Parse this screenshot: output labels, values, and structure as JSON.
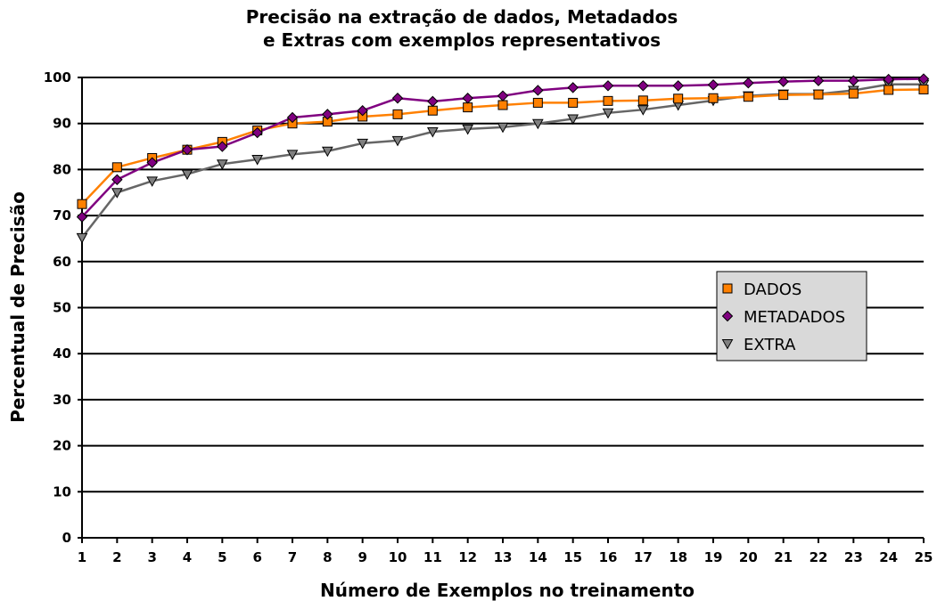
{
  "colors": {
    "gridline": "#000000",
    "background": "#ffffff",
    "legend_bg": "#d9d9d9"
  },
  "chart_data": {
    "type": "line",
    "title_lines": [
      "Precisão na extração de dados, Metadados",
      "e Extras com exemplos representativos"
    ],
    "xlabel": "Número de Exemplos no treinamento",
    "ylabel": "Percentual de Precisão",
    "x": [
      1,
      2,
      3,
      4,
      5,
      6,
      7,
      8,
      9,
      10,
      11,
      12,
      13,
      14,
      15,
      16,
      17,
      18,
      19,
      20,
      21,
      22,
      23,
      24,
      25
    ],
    "ylim": [
      0,
      100
    ],
    "yticks": [
      0,
      10,
      20,
      30,
      40,
      50,
      60,
      70,
      80,
      90,
      100
    ],
    "grid": "horizontal",
    "legend_position": "right",
    "series": [
      {
        "name": "DADOS",
        "marker": "square",
        "line_color": "#ff8000",
        "marker_color": "#ff8000",
        "values": [
          72.5,
          80.5,
          82.5,
          84.3,
          86.0,
          88.5,
          90.0,
          90.4,
          91.5,
          92.0,
          92.8,
          93.5,
          94.0,
          94.5,
          94.5,
          94.9,
          95.0,
          95.4,
          95.5,
          95.8,
          96.2,
          96.3,
          96.5,
          97.3,
          97.4
        ]
      },
      {
        "name": "METADADOS",
        "marker": "diamond",
        "line_color": "#800080",
        "marker_color": "#800080",
        "values": [
          69.7,
          77.8,
          81.5,
          84.3,
          85.0,
          88.0,
          91.3,
          92.0,
          92.8,
          95.5,
          94.8,
          95.5,
          96.0,
          97.2,
          97.8,
          98.2,
          98.2,
          98.2,
          98.4,
          98.8,
          99.1,
          99.3,
          99.3,
          99.6,
          99.7
        ]
      },
      {
        "name": "EXTRA",
        "marker": "triangle-down",
        "line_color": "#666666",
        "marker_color": "#808080",
        "values": [
          65.2,
          75.0,
          77.5,
          79.0,
          81.2,
          82.2,
          83.3,
          84.0,
          85.7,
          86.3,
          88.2,
          88.8,
          89.2,
          90.0,
          91.0,
          92.3,
          93.0,
          94.0,
          95.0,
          96.0,
          96.4,
          96.4,
          97.2,
          98.5,
          98.5
        ]
      }
    ]
  }
}
